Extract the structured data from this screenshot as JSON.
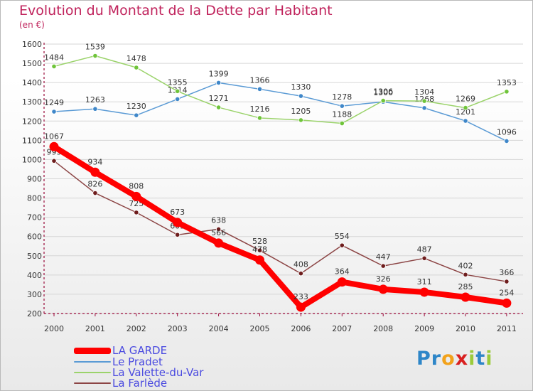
{
  "header": {
    "title": "Evolution du Montant de la Dette par Habitant",
    "subtitle": "(en €)"
  },
  "colors": {
    "title": "#c0235c",
    "axis": "#9a0a3a",
    "grid": "#d6d6d6",
    "legend_text": "#4a4ae0"
  },
  "brand": {
    "letters": [
      "P",
      "r",
      "o",
      "x",
      "i",
      "t",
      "i"
    ],
    "colors": [
      "#2e86c8",
      "#2e86c8",
      "#f2a21b",
      "#d92020",
      "#9bcb3b",
      "#2e86c8",
      "#9bcb3b"
    ]
  },
  "chart_data": {
    "type": "line",
    "x": [
      "2000",
      "2001",
      "2002",
      "2003",
      "2004",
      "2005",
      "2006",
      "2007",
      "2008",
      "2009",
      "2010",
      "2011"
    ],
    "ylim": [
      200,
      1600
    ],
    "yticks": [
      200,
      300,
      400,
      500,
      600,
      700,
      800,
      900,
      1000,
      1100,
      1200,
      1300,
      1400,
      1500,
      1600
    ],
    "grid": "horizontal",
    "legend": "bottom-left",
    "series": [
      {
        "name": "Le Pradet",
        "color": "#5b9bd5",
        "marker": "#3f87c9",
        "values": [
          1249,
          1263,
          1230,
          1314,
          1399,
          1366,
          1330,
          1278,
          1300,
          1268,
          1201,
          1096
        ]
      },
      {
        "name": "La Valette-du-Var",
        "color": "#9bd36b",
        "marker": "#6fc43a",
        "values": [
          1484,
          1539,
          1478,
          1355,
          1271,
          1216,
          1205,
          1188,
          1306,
          1304,
          1269,
          1353
        ]
      },
      {
        "name": "La Farlède",
        "color": "#8c4545",
        "marker": "#6e1d1d",
        "values": [
          993,
          826,
          725,
          609,
          638,
          528,
          408,
          554,
          447,
          487,
          402,
          366
        ]
      },
      {
        "name": "LA GARDE",
        "color": "#ff0000",
        "marker": "#ff0000",
        "values": [
          1067,
          934,
          808,
          673,
          566,
          478,
          233,
          364,
          326,
          311,
          285,
          254
        ]
      }
    ]
  },
  "legend": [
    {
      "label": "LA GARDE",
      "color": "#ff0000"
    },
    {
      "label": "Le Pradet",
      "color": "#5b9bd5"
    },
    {
      "label": "La Valette-du-Var",
      "color": "#9bd36b"
    },
    {
      "label": "La Farlède",
      "color": "#8c4545"
    }
  ]
}
